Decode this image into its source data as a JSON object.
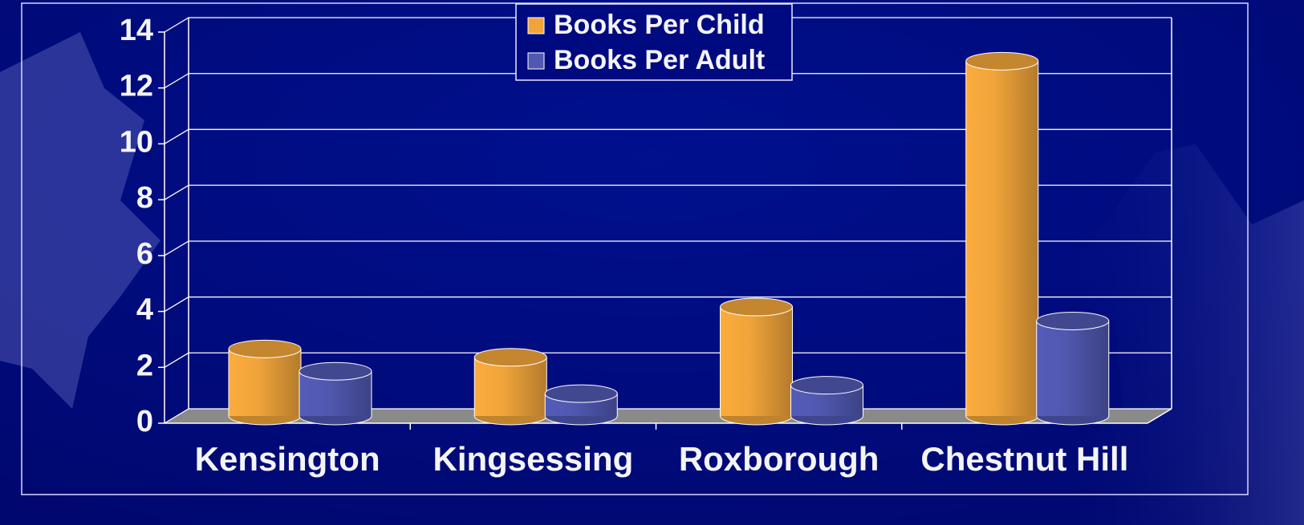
{
  "chart_data": {
    "type": "bar",
    "categories": [
      "Kensington",
      "Kingsessing",
      "Roxborough",
      "Chestnut Hill"
    ],
    "series": [
      {
        "name": "Books Per Child",
        "color": "#f0a43a",
        "values": [
          2.4,
          2.1,
          3.9,
          12.7
        ]
      },
      {
        "name": "Books Per Adult",
        "color": "#5058b0",
        "values": [
          1.6,
          0.8,
          1.1,
          3.4
        ]
      }
    ],
    "ylim": [
      0,
      14
    ],
    "yticks": [
      0,
      2,
      4,
      6,
      8,
      10,
      12,
      14
    ],
    "grid": true,
    "legend": "top"
  }
}
